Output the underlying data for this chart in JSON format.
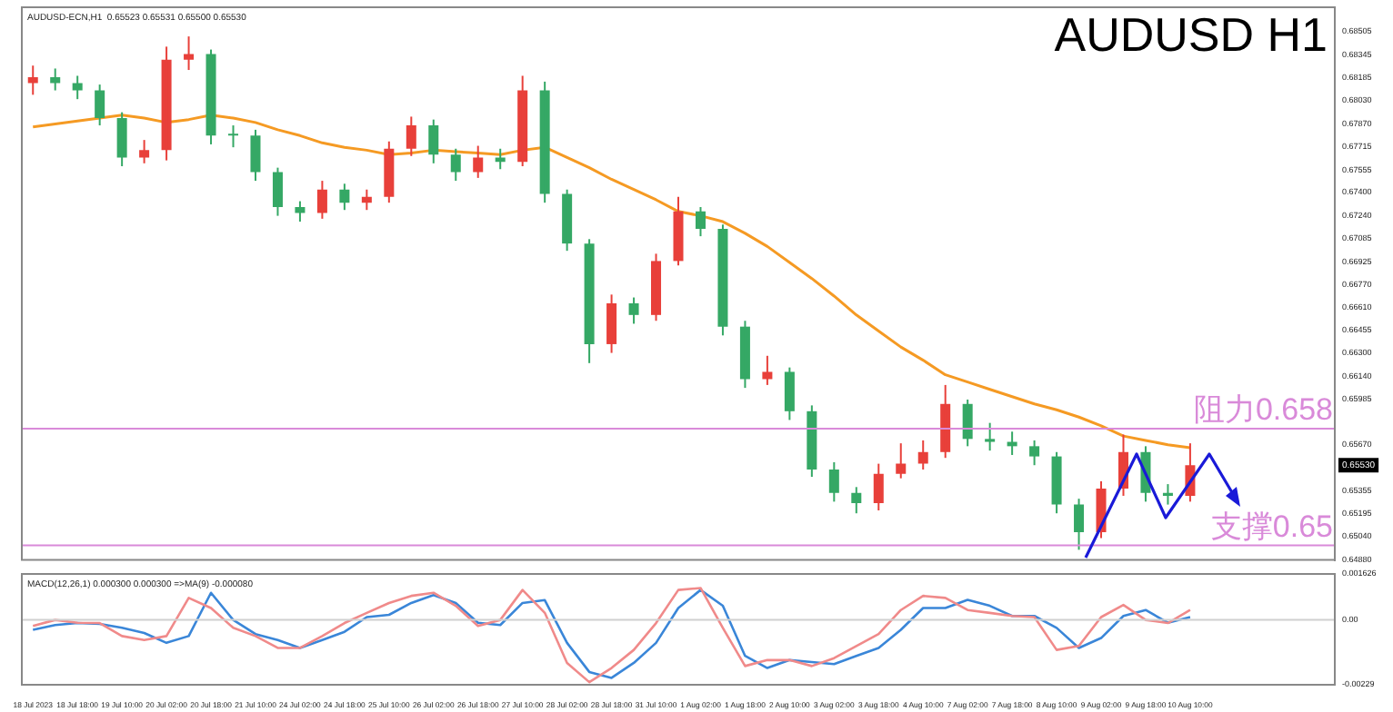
{
  "chart_data": [
    {
      "type": "candlestick",
      "title": "AUDUSD H1",
      "subtitle": "AUDUSD-ECN,H1  0.65523 0.65531 0.65500 0.65530",
      "categories": [
        null,
        null,
        null,
        null,
        null,
        null,
        null,
        null,
        null,
        null,
        null,
        null,
        null,
        null,
        null,
        null,
        null,
        null,
        null,
        null,
        null,
        null,
        null,
        null,
        null,
        null,
        null,
        null,
        null,
        null,
        null,
        null,
        null,
        null,
        null,
        null,
        null,
        null,
        null,
        null,
        null,
        null,
        null,
        null,
        null,
        null,
        null,
        null,
        null,
        null,
        null,
        null,
        null,
        null,
        null,
        null,
        null,
        null,
        null
      ],
      "ohlc": [
        [
          0.6815,
          0.6827,
          0.6807,
          0.6819
        ],
        [
          0.6819,
          0.6825,
          0.681,
          0.6815
        ],
        [
          0.6815,
          0.682,
          0.6804,
          0.681
        ],
        [
          0.681,
          0.6814,
          0.6786,
          0.6791
        ],
        [
          0.6791,
          0.6795,
          0.6758,
          0.6764
        ],
        [
          0.6764,
          0.6776,
          0.676,
          0.6769
        ],
        [
          0.6769,
          0.684,
          0.6762,
          0.6831
        ],
        [
          0.6831,
          0.6847,
          0.6824,
          0.6835
        ],
        [
          0.6835,
          0.6838,
          0.6773,
          0.6779
        ],
        [
          0.6779,
          0.6786,
          0.6771,
          0.6779
        ],
        [
          0.6779,
          0.6783,
          0.6748,
          0.6754
        ],
        [
          0.6754,
          0.6757,
          0.6724,
          0.673
        ],
        [
          0.673,
          0.6734,
          0.672,
          0.6726
        ],
        [
          0.6726,
          0.6748,
          0.6722,
          0.6742
        ],
        [
          0.6742,
          0.6746,
          0.6728,
          0.6733
        ],
        [
          0.6733,
          0.6742,
          0.6728,
          0.6737
        ],
        [
          0.6737,
          0.6775,
          0.6733,
          0.677
        ],
        [
          0.677,
          0.6792,
          0.6765,
          0.6786
        ],
        [
          0.6786,
          0.679,
          0.676,
          0.6766
        ],
        [
          0.6766,
          0.677,
          0.6748,
          0.6754
        ],
        [
          0.6754,
          0.6772,
          0.675,
          0.6764
        ],
        [
          0.6764,
          0.677,
          0.6756,
          0.6761
        ],
        [
          0.6761,
          0.682,
          0.6758,
          0.681
        ],
        [
          0.681,
          0.6816,
          0.6733,
          0.6739
        ],
        [
          0.6739,
          0.6742,
          0.67,
          0.6705
        ],
        [
          0.6705,
          0.6708,
          0.6623,
          0.6636
        ],
        [
          0.6636,
          0.667,
          0.663,
          0.6664
        ],
        [
          0.6664,
          0.6668,
          0.665,
          0.6656
        ],
        [
          0.6656,
          0.6698,
          0.6652,
          0.6693
        ],
        [
          0.6693,
          0.6737,
          0.669,
          0.6727
        ],
        [
          0.6727,
          0.673,
          0.671,
          0.6715
        ],
        [
          0.6715,
          0.6718,
          0.6642,
          0.6648
        ],
        [
          0.6648,
          0.6652,
          0.6606,
          0.6612
        ],
        [
          0.6612,
          0.6628,
          0.6608,
          0.6617
        ],
        [
          0.6617,
          0.662,
          0.6584,
          0.659
        ],
        [
          0.659,
          0.6594,
          0.6545,
          0.655
        ],
        [
          0.655,
          0.6555,
          0.6528,
          0.6534
        ],
        [
          0.6534,
          0.6538,
          0.652,
          0.6527
        ],
        [
          0.6527,
          0.6554,
          0.6522,
          0.6547
        ],
        [
          0.6547,
          0.6568,
          0.6544,
          0.6554
        ],
        [
          0.6554,
          0.657,
          0.655,
          0.6562
        ],
        [
          0.6562,
          0.6608,
          0.6558,
          0.6595
        ],
        [
          0.6595,
          0.6598,
          0.6566,
          0.6571
        ],
        [
          0.6571,
          0.6582,
          0.6563,
          0.6569
        ],
        [
          0.6569,
          0.6576,
          0.656,
          0.6566
        ],
        [
          0.6566,
          0.657,
          0.6553,
          0.6559
        ],
        [
          0.6559,
          0.6562,
          0.652,
          0.6526
        ],
        [
          0.6526,
          0.653,
          0.6495,
          0.6507
        ],
        [
          0.6507,
          0.6542,
          0.6503,
          0.6537
        ],
        [
          0.6537,
          0.6574,
          0.6532,
          0.6562
        ],
        [
          0.6562,
          0.6566,
          0.6528,
          0.6534
        ],
        [
          0.6534,
          0.654,
          0.6526,
          0.6532
        ],
        [
          0.6532,
          0.6568,
          0.6528,
          0.6553
        ],
        null,
        null,
        null,
        null,
        null,
        null
      ],
      "colors": [
        "#e8403a",
        "#35a865",
        "#35a865",
        "#35a865",
        "#35a865",
        "#e8403a",
        "#e8403a",
        "#e8403a",
        "#35a865",
        "#35a865",
        "#35a865",
        "#35a865",
        "#35a865",
        "#e8403a",
        "#35a865",
        "#e8403a",
        "#e8403a",
        "#e8403a",
        "#35a865",
        "#35a865",
        "#e8403a",
        "#35a865",
        "#e8403a",
        "#35a865",
        "#35a865",
        "#35a865",
        "#e8403a",
        "#35a865",
        "#e8403a",
        "#e8403a",
        "#35a865",
        "#35a865",
        "#35a865",
        "#e8403a",
        "#35a865",
        "#35a865",
        "#35a865",
        "#35a865",
        "#e8403a",
        "#e8403a",
        "#e8403a",
        "#e8403a",
        "#35a865",
        "#35a865",
        "#35a865",
        "#35a865",
        "#35a865",
        "#35a865",
        "#e8403a",
        "#e8403a",
        "#35a865",
        "#35a865",
        "#e8403a",
        null,
        null,
        null,
        null,
        null,
        null
      ],
      "series": [
        {
          "type": "line",
          "color": "#f59a23",
          "values": [
            0.6785,
            0.6787,
            0.6789,
            0.6791,
            0.6793,
            0.6791,
            0.6788,
            0.679,
            0.6793,
            0.6791,
            0.6788,
            0.6783,
            0.6779,
            0.6774,
            0.6771,
            0.6769,
            0.6766,
            0.6767,
            0.6769,
            0.6768,
            0.6767,
            0.6766,
            0.6769,
            0.6771,
            0.6764,
            0.6757,
            0.6749,
            0.6742,
            0.6735,
            0.6727,
            0.6724,
            0.672,
            0.6712,
            0.6703,
            0.6692,
            0.6681,
            0.6669,
            0.6656,
            0.6645,
            0.6634,
            0.6625,
            0.6615,
            0.661,
            0.6605,
            0.66,
            0.6595,
            0.6591,
            0.6586,
            0.658,
            0.6573,
            0.657,
            0.6567,
            0.6565,
            null,
            null,
            null,
            null,
            null,
            null
          ]
        }
      ],
      "ref_lines": [
        {
          "axis": "y",
          "value": 0.6578,
          "label": "阻力0.658",
          "color": "#d98ad9"
        },
        {
          "axis": "y",
          "value": 0.6498,
          "label": "支撑0.65",
          "color": "#d98ad9"
        }
      ],
      "annotations": [
        {
          "text": "0.65530",
          "y": 0.6553
        }
      ],
      "ylim": [
        0.6488,
        0.6867
      ],
      "yticks": [
        0.68505,
        0.68345,
        0.68185,
        {
          "value": 0.6803,
          "label": "0.68030"
        },
        {
          "value": 0.6787,
          "label": "0.67870"
        },
        0.67715,
        0.67555,
        {
          "value": 0.674,
          "label": "0.67400"
        },
        {
          "value": 0.6724,
          "label": "0.67240"
        },
        0.67085,
        0.66925,
        {
          "value": 0.6677,
          "label": "0.66770"
        },
        {
          "value": 0.6661,
          "label": "0.66610"
        },
        0.66455,
        {
          "value": 0.663,
          "label": "0.66300"
        },
        {
          "value": 0.6614,
          "label": "0.66140"
        },
        0.65985,
        {
          "value": 0.6567,
          "label": "0.65670"
        },
        0.65355,
        0.65195,
        {
          "value": 0.6504,
          "label": "0.65040"
        },
        {
          "value": 0.6488,
          "label": "0.64880"
        }
      ],
      "tick_labels": "y",
      "grid": false
    },
    {
      "type": "line",
      "title": "MACD(12,26,1) 0.000300 0.000300 =>MA(9) -0.000080",
      "categories": [
        "18 Jul 2023",
        null,
        "18 Jul 18:00",
        null,
        "19 Jul 10:00",
        null,
        "20 Jul 02:00",
        null,
        "20 Jul 18:00",
        null,
        "21 Jul 10:00",
        null,
        "24 Jul 02:00",
        null,
        "24 Jul 18:00",
        null,
        "25 Jul 10:00",
        null,
        "26 Jul 02:00",
        null,
        "26 Jul 18:00",
        null,
        "27 Jul 10:00",
        null,
        "28 Jul 02:00",
        null,
        "28 Jul 18:00",
        null,
        "31 Jul 10:00",
        null,
        "1 Aug 02:00",
        null,
        "1 Aug 18:00",
        null,
        "2 Aug 10:00",
        null,
        "3 Aug 02:00",
        null,
        "3 Aug 18:00",
        null,
        "4 Aug 10:00",
        null,
        "7 Aug 02:00",
        null,
        "7 Aug 18:00",
        null,
        "8 Aug 10:00",
        null,
        "9 Aug 02:00",
        null,
        "9 Aug 18:00",
        null,
        "10 Aug 10:00",
        null,
        null,
        null,
        null,
        null,
        null
      ],
      "series": [
        {
          "color": "#f08a8a",
          "values": [
            -0.00021,
            0,
            -0.0001,
            -0.00011,
            -0.00057,
            -0.00071,
            -0.00057,
            0.00078,
            0.00042,
            -0.00028,
            -0.00057,
            -0.00099,
            -0.00099,
            -0.00057,
            -0.00011,
            0.00025,
            0.0006,
            0.00085,
            0.00096,
            0.0005,
            -0.00021,
            0,
            0.00106,
            0.00025,
            -0.00152,
            -0.0022,
            -0.0017,
            -0.00106,
            -0.00011,
            0.00106,
            0.00113,
            -0.00028,
            -0.00163,
            -0.00142,
            -0.00142,
            -0.00163,
            -0.00135,
            -0.00092,
            -0.0005,
            0.00035,
            0.00085,
            0.00078,
            0.00035,
            0.00025,
            0.00014,
            0.0001,
            -0.00106,
            -0.00092,
            0.0001,
            0.00053,
            0,
            -0.00011,
            0.00035,
            null,
            null,
            null,
            null,
            null,
            null
          ]
        },
        {
          "color": "#3a86d8",
          "values": [
            -0.00035,
            -0.00018,
            -0.00011,
            -0.00014,
            -0.00028,
            -0.00046,
            -0.00081,
            -0.00057,
            0.00096,
            0,
            -0.0005,
            -0.00071,
            -0.00099,
            -0.00071,
            -0.00042,
            0.0001,
            0.00018,
            0.0006,
            0.00088,
            0.0006,
            -0.0001,
            -0.00018,
            0.0006,
            0.0007,
            -0.00081,
            -0.00184,
            -0.00205,
            -0.00152,
            -0.00081,
            0.00042,
            0.00106,
            0.0005,
            -0.00127,
            -0.0017,
            -0.00142,
            -0.00149,
            -0.00156,
            -0.00127,
            -0.00099,
            -0.00035,
            0.00042,
            0.00042,
            0.00071,
            0.0005,
            0.00014,
            0.00014,
            -0.00028,
            -0.00099,
            -0.00064,
            0.00014,
            0.00035,
            -0.0001,
            0.0001,
            null,
            null,
            null,
            null,
            null,
            null
          ]
        }
      ],
      "ref_lines": [
        {
          "axis": "y",
          "value": 0,
          "color": "#d0d0d0"
        }
      ],
      "ylim": [
        -0.00229,
        0.001626
      ],
      "yticks": [
        0.001626,
        {
          "value": 0,
          "label": "0.00"
        },
        -0.00229
      ],
      "grid": false
    }
  ]
}
